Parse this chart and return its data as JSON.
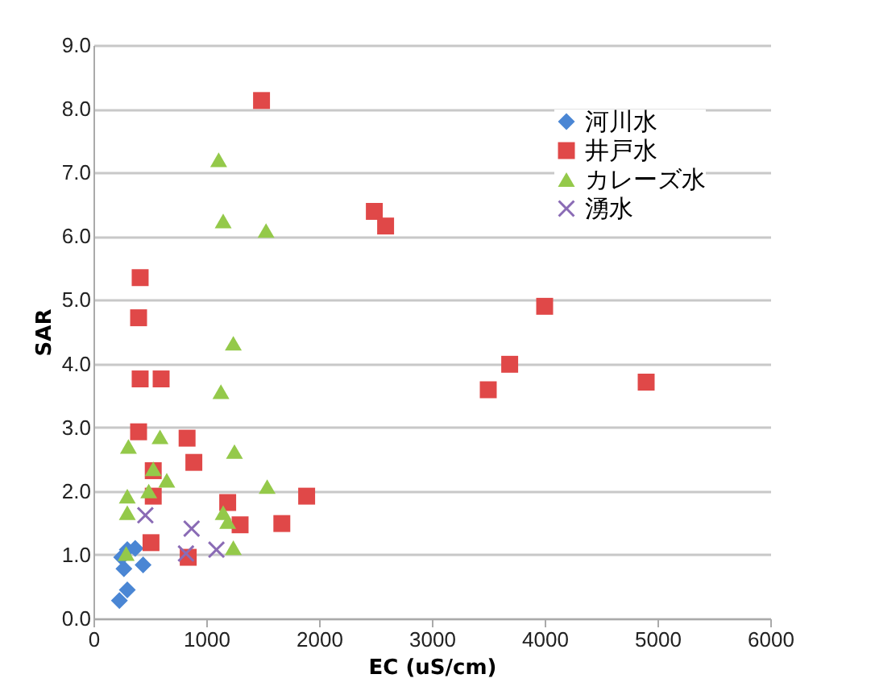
{
  "chart_data": {
    "type": "scatter",
    "xlabel": "EC (uS/cm)",
    "ylabel": "SAR",
    "xlim": [
      0,
      6000
    ],
    "xticks": [
      0,
      1000,
      2000,
      3000,
      4000,
      5000,
      6000
    ],
    "ylim": [
      0,
      9
    ],
    "yticks": [
      {
        "value": 0,
        "label": "0.0"
      },
      {
        "value": 1,
        "label": "1.0"
      },
      {
        "value": 2,
        "label": "2.0"
      },
      {
        "value": 3,
        "label": "3.0"
      },
      {
        "value": 4,
        "label": "4.0"
      },
      {
        "value": 5,
        "label": "5.0"
      },
      {
        "value": 6,
        "label": "6.0"
      },
      {
        "value": 7,
        "label": "7.0"
      },
      {
        "value": 8,
        "label": "8.0"
      },
      {
        "value": 9,
        "label": "9.0"
      }
    ],
    "grid": "y",
    "legend": "top right",
    "series": [
      {
        "name": "河川水",
        "color": "#4a86d4",
        "marker": "diamond",
        "x": [
          250,
          300,
          370,
          440,
          300,
          230,
          270
        ],
        "values": [
          0.96,
          1.08,
          1.1,
          0.84,
          0.45,
          0.28,
          0.78
        ]
      },
      {
        "name": "井戸水",
        "color": "#e04848",
        "marker": "square",
        "x": [
          1490,
          2490,
          2590,
          414,
          400,
          4000,
          3690,
          3500,
          4900,
          414,
          600,
          400,
          830,
          890,
          530,
          530,
          1190,
          1300,
          1670,
          1890,
          510,
          840
        ],
        "values": [
          8.13,
          6.39,
          6.16,
          5.35,
          4.72,
          4.9,
          3.99,
          3.59,
          3.71,
          3.76,
          3.76,
          2.93,
          2.83,
          2.45,
          2.32,
          1.92,
          1.82,
          1.47,
          1.49,
          1.92,
          1.19,
          0.96
        ]
      },
      {
        "name": "カレーズ水",
        "color": "#94c94a",
        "marker": "triangle",
        "x": [
          1110,
          1150,
          1530,
          1240,
          1130,
          310,
          590,
          1250,
          530,
          650,
          490,
          300,
          300,
          1540,
          1150,
          1190,
          1240,
          290
        ],
        "values": [
          7.2,
          6.24,
          6.09,
          4.32,
          3.56,
          2.7,
          2.85,
          2.62,
          2.35,
          2.17,
          2.0,
          1.92,
          1.66,
          2.07,
          1.66,
          1.52,
          1.11,
          1.02
        ]
      },
      {
        "name": "湧水",
        "color": "#8a6bb5",
        "marker": "cross",
        "x": [
          460,
          870,
          820,
          1090
        ],
        "values": [
          1.62,
          1.41,
          1.02,
          1.08
        ]
      }
    ]
  }
}
